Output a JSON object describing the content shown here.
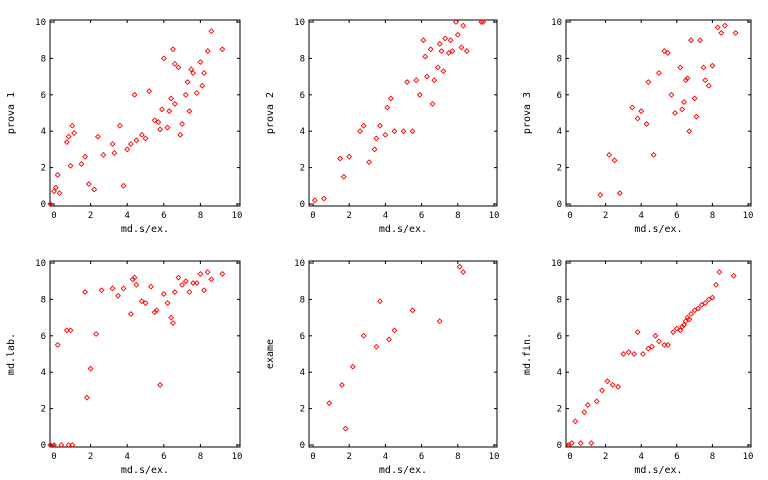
{
  "colors": {
    "point": "#ff0000",
    "axis": "#000000",
    "background": "#ffffff"
  },
  "chart_data": [
    {
      "type": "scatter",
      "xlabel": "md.s/ex.",
      "ylabel": "prova 1",
      "xlim": [
        0,
        10
      ],
      "ylim": [
        0,
        10
      ],
      "xticks": [
        0,
        2,
        4,
        6,
        8,
        10
      ],
      "yticks": [
        0,
        2,
        4,
        6,
        8,
        10
      ],
      "grid": false,
      "series": [
        {
          "x": [
            -0.2,
            0.0,
            0.1,
            0.2,
            0.3,
            0.7,
            0.8,
            0.9,
            1.0,
            1.1,
            1.5,
            1.7,
            1.9,
            2.2,
            2.4,
            2.7,
            3.2,
            3.3,
            3.6,
            3.8,
            4.0,
            4.2,
            4.4,
            4.5,
            4.8,
            5.0,
            5.2,
            5.5,
            5.7,
            5.8,
            5.9,
            6.0,
            6.2,
            6.3,
            6.4,
            6.5,
            6.6,
            6.6,
            6.8,
            6.9,
            7.0,
            7.2,
            7.3,
            7.4,
            7.5,
            7.6,
            7.8,
            8.0,
            8.1,
            8.2,
            8.4,
            8.6,
            9.2
          ],
          "y": [
            0.0,
            0.7,
            0.9,
            1.6,
            0.6,
            3.4,
            3.7,
            2.1,
            4.3,
            3.9,
            2.2,
            2.6,
            1.1,
            0.8,
            3.7,
            2.7,
            3.3,
            2.8,
            4.3,
            1.0,
            3.0,
            3.3,
            6.0,
            3.5,
            3.8,
            3.6,
            6.2,
            4.6,
            4.5,
            4.1,
            5.2,
            8.0,
            4.2,
            5.1,
            5.8,
            8.5,
            7.7,
            5.5,
            7.5,
            3.8,
            4.4,
            6.0,
            6.7,
            5.1,
            7.4,
            7.2,
            6.1,
            7.8,
            6.5,
            7.2,
            8.4,
            9.5,
            8.5
          ]
        }
      ]
    },
    {
      "type": "scatter",
      "xlabel": "md.s/ex.",
      "ylabel": "prova 2",
      "xlim": [
        0,
        10
      ],
      "ylim": [
        0,
        10
      ],
      "xticks": [
        0,
        2,
        4,
        6,
        8,
        10
      ],
      "yticks": [
        0,
        2,
        4,
        6,
        8,
        10
      ],
      "grid": false,
      "series": [
        {
          "x": [
            0.1,
            0.6,
            1.5,
            1.7,
            2.0,
            2.6,
            2.8,
            3.1,
            3.4,
            3.5,
            3.7,
            4.0,
            4.1,
            4.3,
            4.5,
            5.0,
            5.2,
            5.5,
            5.7,
            5.9,
            6.1,
            6.2,
            6.3,
            6.5,
            6.6,
            6.7,
            6.9,
            7.0,
            7.1,
            7.2,
            7.3,
            7.5,
            7.6,
            7.7,
            7.9,
            8.0,
            8.2,
            8.3,
            8.5,
            9.3,
            9.4
          ],
          "y": [
            0.2,
            0.3,
            2.5,
            1.5,
            2.6,
            4.0,
            4.3,
            2.3,
            3.0,
            3.6,
            4.3,
            3.8,
            5.3,
            5.8,
            4.0,
            4.0,
            6.7,
            4.0,
            6.8,
            6.0,
            9.0,
            8.1,
            7.0,
            8.5,
            5.5,
            6.8,
            7.5,
            8.8,
            8.4,
            7.3,
            9.1,
            8.3,
            9.0,
            8.4,
            10.0,
            9.3,
            8.6,
            9.8,
            8.4,
            10.0,
            10.0
          ]
        }
      ]
    },
    {
      "type": "scatter",
      "xlabel": "md.s/ex.",
      "ylabel": "prova 3",
      "xlim": [
        0,
        10
      ],
      "ylim": [
        0,
        10
      ],
      "xticks": [
        0,
        2,
        4,
        6,
        8,
        10
      ],
      "yticks": [
        0,
        2,
        4,
        6,
        8,
        10
      ],
      "grid": false,
      "series": [
        {
          "x": [
            1.7,
            2.2,
            2.5,
            2.8,
            3.5,
            3.8,
            4.0,
            4.3,
            4.4,
            4.7,
            5.0,
            5.3,
            5.5,
            5.7,
            5.9,
            6.2,
            6.3,
            6.4,
            6.5,
            6.6,
            6.7,
            6.8,
            7.0,
            7.1,
            7.3,
            7.5,
            7.6,
            7.8,
            8.0,
            8.3,
            8.5,
            8.7,
            9.3
          ],
          "y": [
            0.5,
            2.7,
            2.4,
            0.6,
            5.3,
            4.7,
            5.1,
            4.4,
            6.7,
            2.7,
            7.2,
            8.4,
            8.3,
            6.0,
            5.0,
            7.5,
            5.2,
            5.6,
            6.8,
            6.9,
            4.0,
            9.0,
            5.8,
            4.8,
            9.0,
            7.5,
            6.8,
            6.5,
            7.6,
            9.7,
            9.4,
            9.8,
            9.4
          ]
        }
      ]
    },
    {
      "type": "scatter",
      "xlabel": "md.s/ex.",
      "ylabel": "md.lab.",
      "xlim": [
        0,
        10
      ],
      "ylim": [
        0,
        10
      ],
      "xticks": [
        0,
        2,
        4,
        6,
        8,
        10
      ],
      "yticks": [
        0,
        2,
        4,
        6,
        8,
        10
      ],
      "grid": false,
      "series": [
        {
          "x": [
            -0.2,
            0.0,
            0.2,
            0.4,
            0.7,
            0.8,
            0.9,
            1.0,
            1.7,
            1.8,
            2.0,
            2.3,
            2.6,
            3.2,
            3.5,
            3.8,
            4.2,
            4.3,
            4.4,
            4.5,
            4.8,
            5.0,
            5.3,
            5.5,
            5.6,
            5.8,
            6.0,
            6.2,
            6.4,
            6.5,
            6.6,
            6.8,
            7.0,
            7.2,
            7.4,
            7.6,
            7.8,
            8.0,
            8.2,
            8.4,
            8.6,
            9.2
          ],
          "y": [
            0.0,
            0.0,
            5.5,
            0.0,
            6.3,
            0.0,
            6.3,
            0.0,
            8.4,
            2.6,
            4.2,
            6.1,
            8.5,
            8.6,
            8.2,
            8.6,
            7.2,
            9.1,
            9.2,
            8.8,
            7.9,
            7.8,
            8.7,
            7.3,
            7.4,
            3.3,
            8.3,
            7.8,
            7.0,
            6.7,
            8.4,
            9.2,
            8.8,
            9.0,
            8.4,
            8.9,
            8.9,
            9.4,
            8.5,
            9.5,
            9.1,
            9.4
          ]
        }
      ]
    },
    {
      "type": "scatter",
      "xlabel": "md.s/ex.",
      "ylabel": "exame",
      "xlim": [
        0,
        10
      ],
      "ylim": [
        0,
        10
      ],
      "xticks": [
        0,
        2,
        4,
        6,
        8,
        10
      ],
      "yticks": [
        0,
        2,
        4,
        6,
        8,
        10
      ],
      "grid": false,
      "series": [
        {
          "x": [
            0.9,
            1.6,
            1.8,
            2.2,
            2.8,
            3.5,
            3.7,
            4.2,
            4.5,
            5.5,
            7.0,
            8.1,
            8.3
          ],
          "y": [
            2.3,
            3.3,
            0.9,
            4.3,
            6.0,
            5.4,
            7.9,
            5.8,
            6.3,
            7.4,
            6.8,
            9.8,
            9.5
          ]
        }
      ]
    },
    {
      "type": "scatter",
      "xlabel": "md.s/ex.",
      "ylabel": "md.fin.",
      "xlim": [
        0,
        10
      ],
      "ylim": [
        0,
        10
      ],
      "xticks": [
        0,
        2,
        4,
        6,
        8,
        10
      ],
      "yticks": [
        0,
        2,
        4,
        6,
        8,
        10
      ],
      "grid": false,
      "series": [
        {
          "x": [
            -0.1,
            0.1,
            0.3,
            0.6,
            0.8,
            1.0,
            1.2,
            1.5,
            1.8,
            2.1,
            2.4,
            2.7,
            3.0,
            3.3,
            3.6,
            3.8,
            4.1,
            4.4,
            4.6,
            4.8,
            5.0,
            5.3,
            5.5,
            5.8,
            6.0,
            6.2,
            6.3,
            6.4,
            6.5,
            6.6,
            6.7,
            6.8,
            7.0,
            7.2,
            7.4,
            7.6,
            7.8,
            8.0,
            8.2,
            8.4,
            9.2
          ],
          "y": [
            0.0,
            0.1,
            1.3,
            0.1,
            1.8,
            2.2,
            0.1,
            2.4,
            3.0,
            3.5,
            3.3,
            3.2,
            5.0,
            5.1,
            5.0,
            6.2,
            5.0,
            5.3,
            5.4,
            6.0,
            5.7,
            5.5,
            5.5,
            6.2,
            6.4,
            6.3,
            6.5,
            6.6,
            6.8,
            7.0,
            6.9,
            7.2,
            7.4,
            7.5,
            7.7,
            7.8,
            8.0,
            8.1,
            8.8,
            9.5,
            9.3
          ]
        }
      ]
    }
  ]
}
